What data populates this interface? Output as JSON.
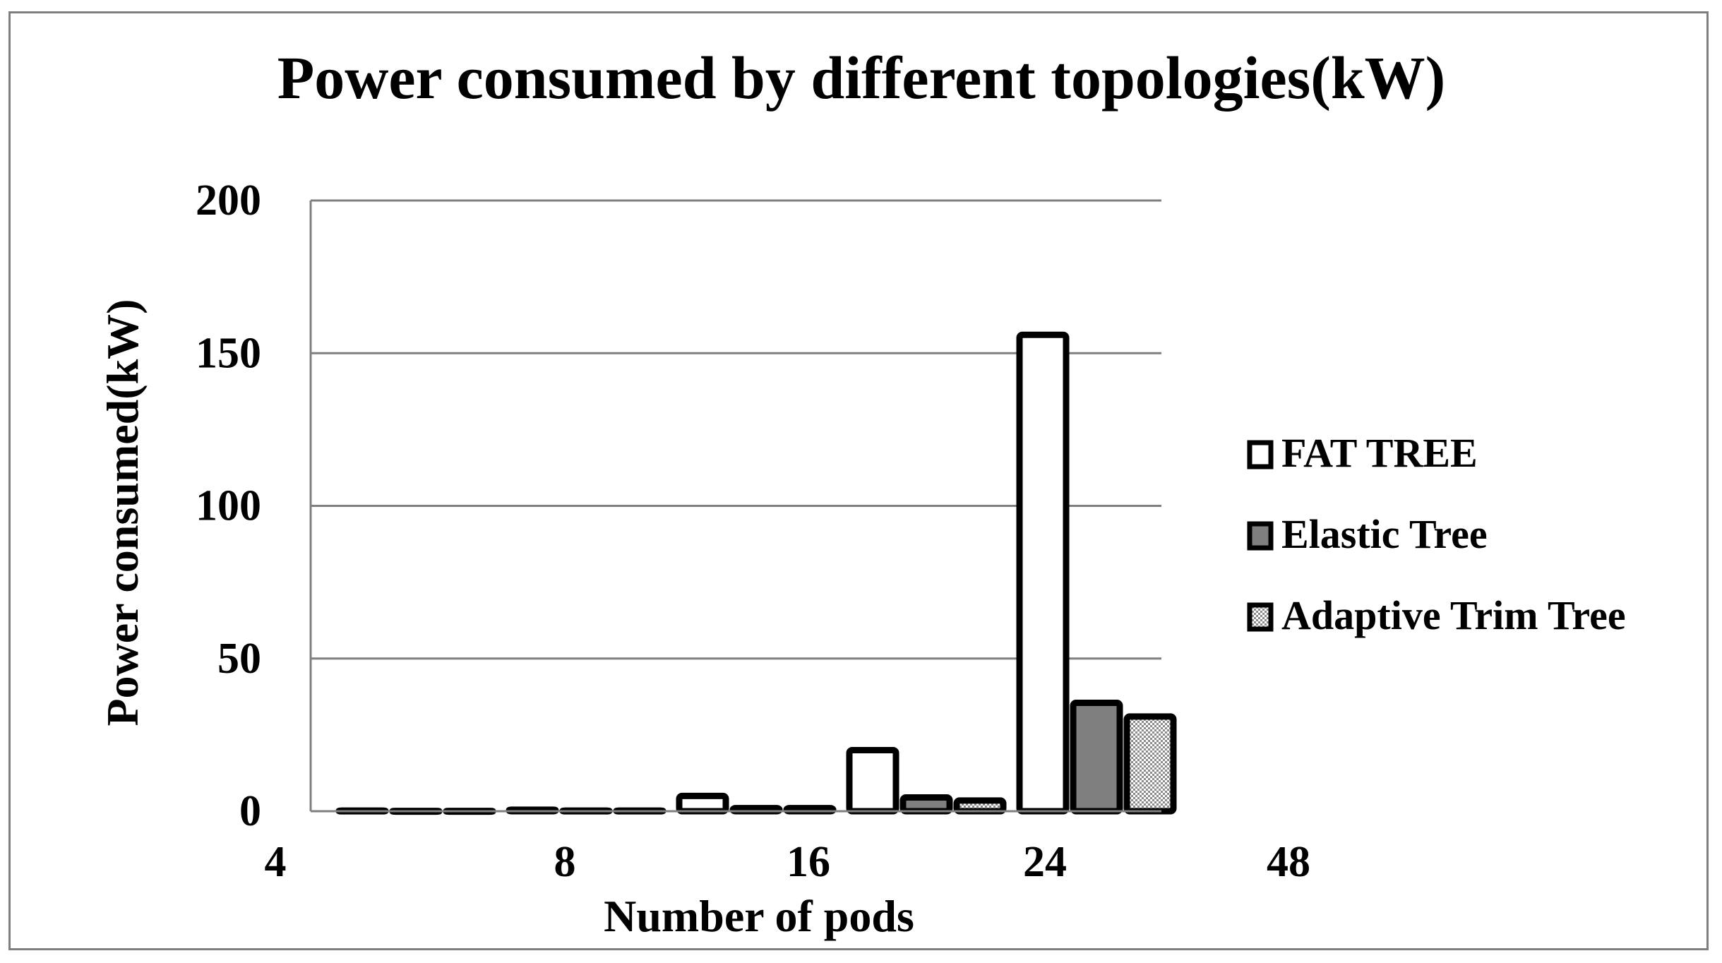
{
  "chart_data": {
    "type": "bar",
    "title": "Power consumed by different topologies(kW)",
    "xlabel": "Number of pods",
    "ylabel": "Power consumed(kW)",
    "categories": [
      "4",
      "8",
      "16",
      "24",
      "48"
    ],
    "yticks": [
      "0",
      "50",
      "100",
      "150",
      "200"
    ],
    "ylim": [
      0,
      200
    ],
    "grid": true,
    "legend_position": "right",
    "series": [
      {
        "name": "FAT TREE",
        "fill": "#ffffff",
        "pattern": "none",
        "values": [
          0.2,
          0.5,
          5,
          20,
          156
        ]
      },
      {
        "name": "Elastic Tree",
        "fill": "#7f7f7f",
        "pattern": "none",
        "values": [
          0.1,
          0.2,
          1,
          4.5,
          35.5
        ]
      },
      {
        "name": "Adaptive Trim Tree",
        "fill": "#c8c8c8",
        "pattern": "checker",
        "values": [
          0.1,
          0.2,
          1,
          3.5,
          31
        ]
      }
    ]
  }
}
